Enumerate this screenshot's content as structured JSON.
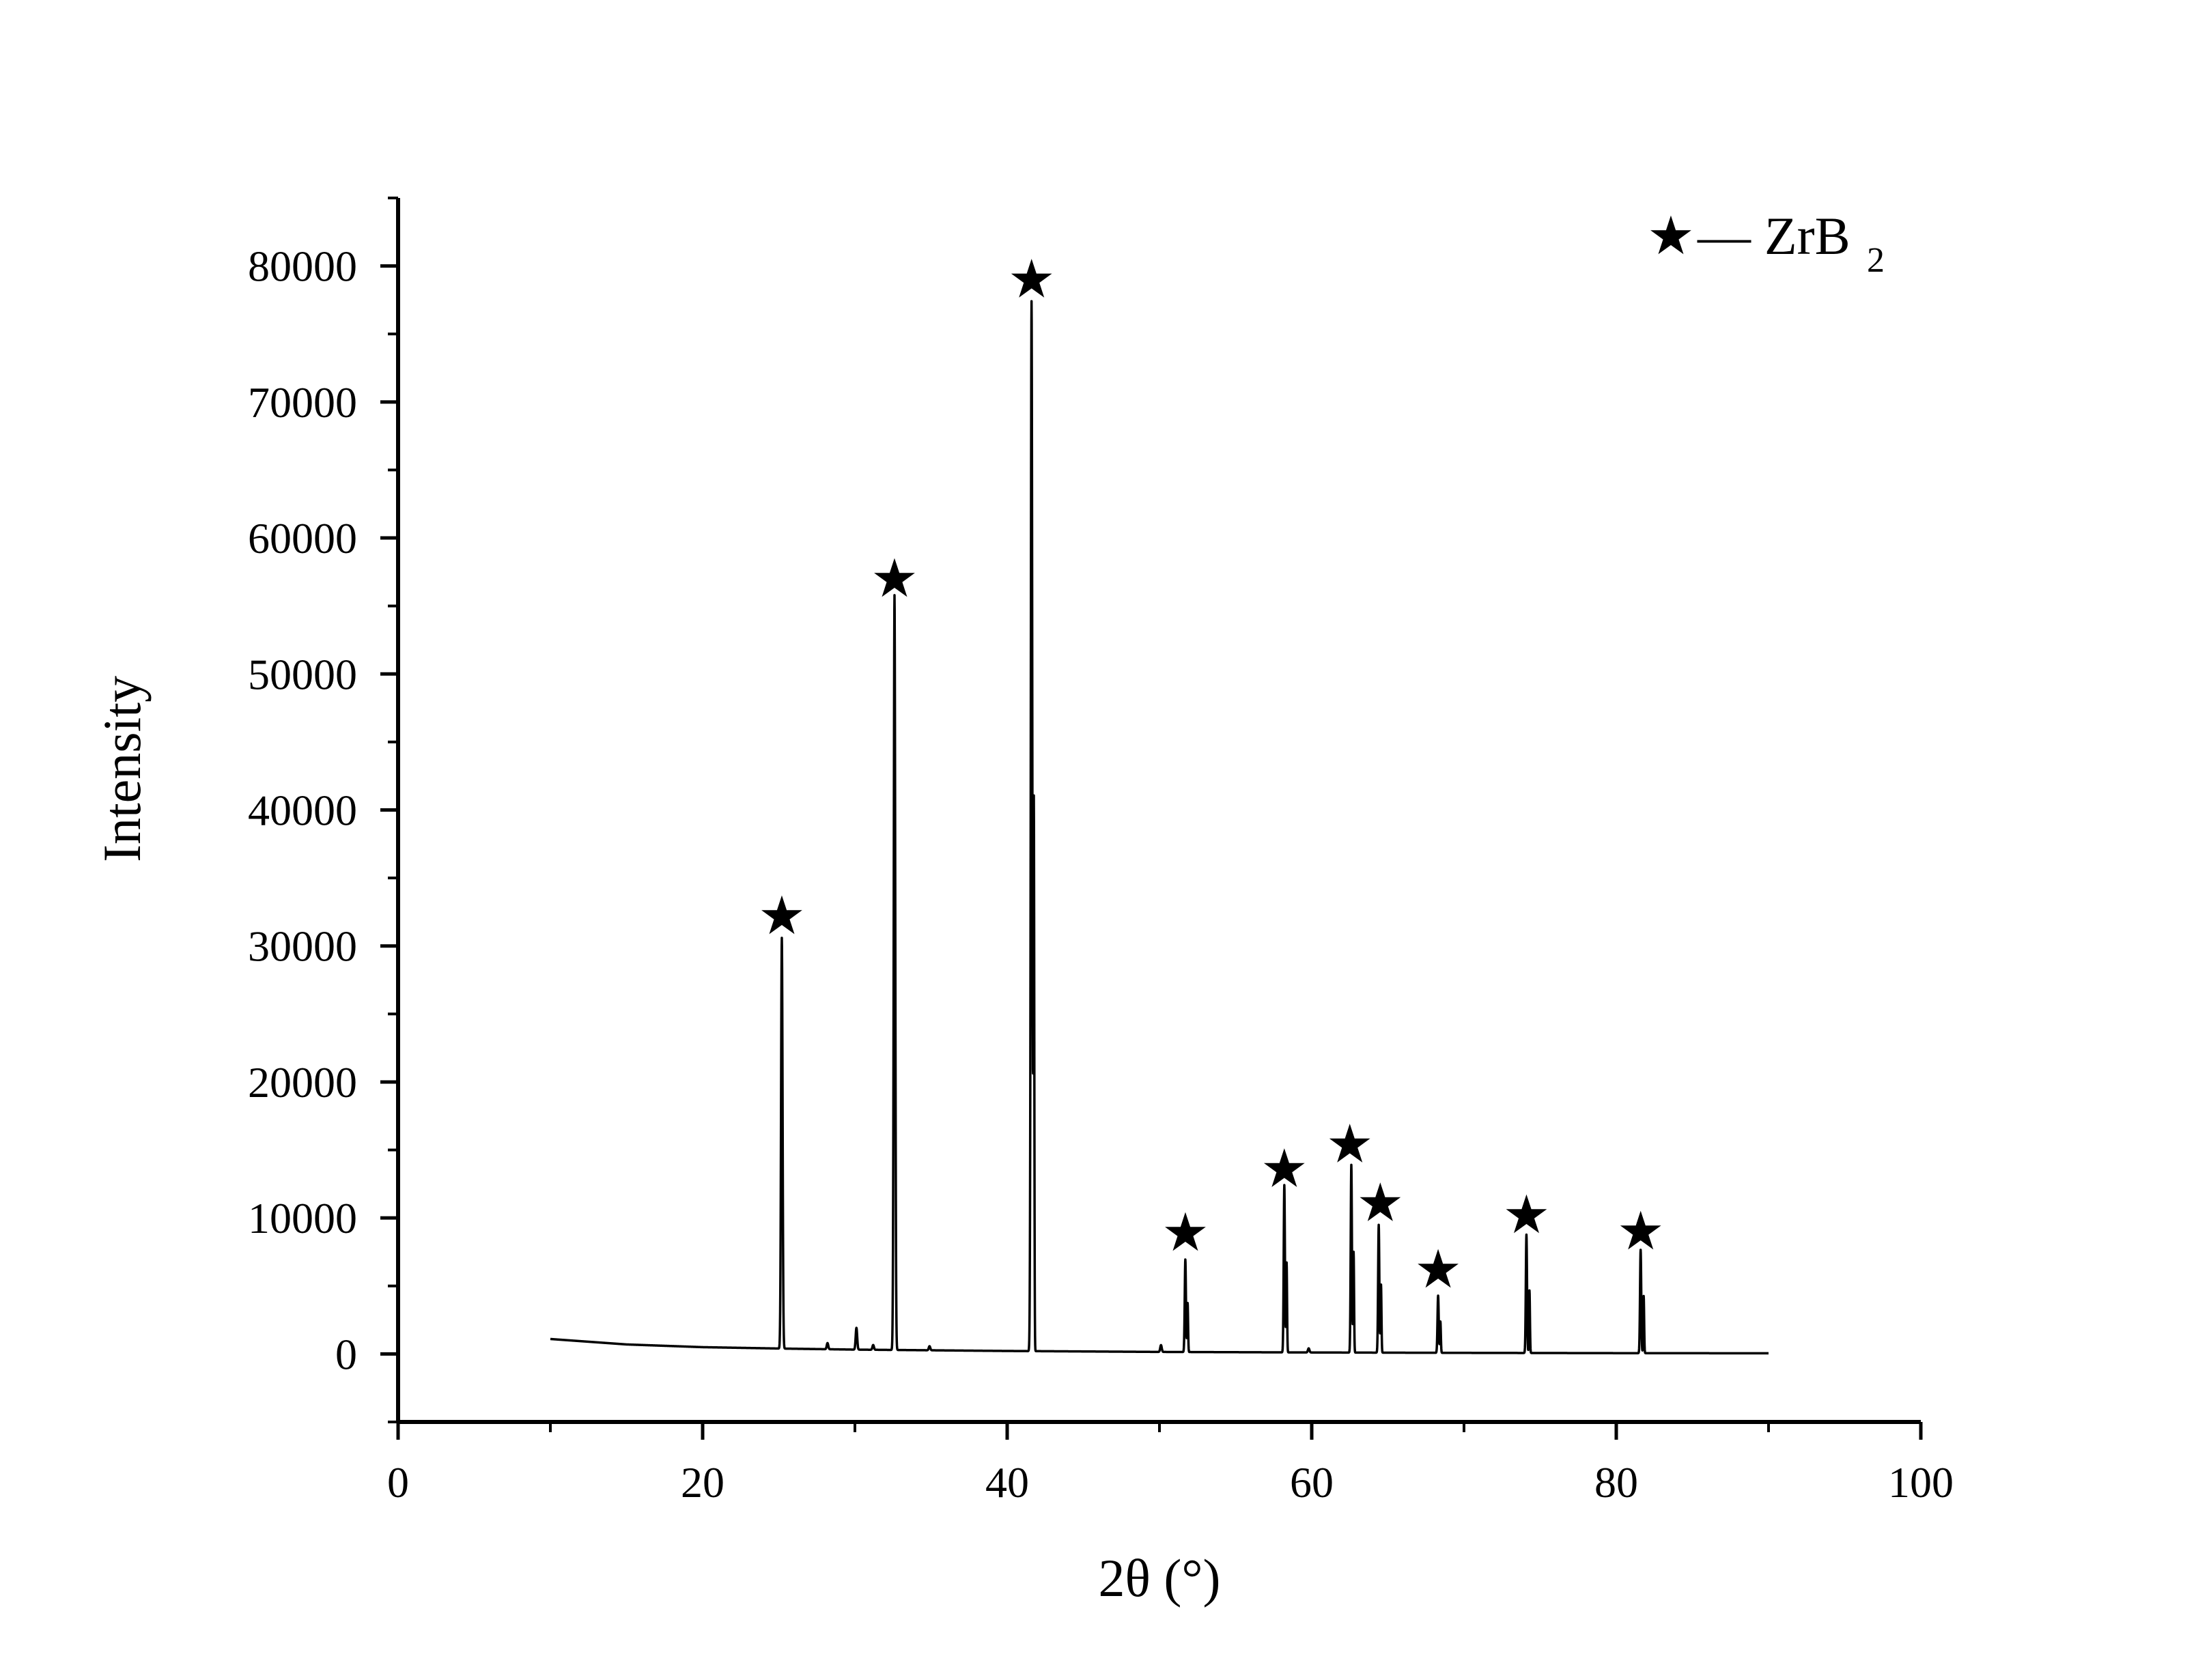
{
  "chart_data": {
    "type": "line",
    "xlabel": "2θ (°)",
    "ylabel": "Intensity",
    "xlim": [
      0,
      100
    ],
    "ylim": [
      -5000,
      85000
    ],
    "x_ticks": [
      0,
      20,
      40,
      60,
      80,
      100
    ],
    "x_tick_labels": [
      "0",
      "20",
      "40",
      "60",
      "80",
      "100"
    ],
    "y_ticks": [
      0,
      10000,
      20000,
      30000,
      40000,
      50000,
      60000,
      70000,
      80000
    ],
    "y_tick_labels": [
      "0",
      "10000",
      "20000",
      "30000",
      "40000",
      "50000",
      "60000",
      "70000",
      "80000"
    ],
    "grid": false,
    "legend": {
      "position": "top-right",
      "marker": "★",
      "dash": "—",
      "label": "ZrB",
      "subscript": "2"
    },
    "series": [
      {
        "name": "ZrB2",
        "color": "#000000",
        "baseline": {
          "x": [
            10,
            15,
            20,
            25,
            30,
            40,
            50,
            60,
            70,
            80,
            90
          ],
          "y": [
            1100,
            700,
            500,
            400,
            320,
            220,
            150,
            110,
            80,
            60,
            50
          ]
        },
        "peaks": [
          {
            "x": 25.2,
            "y": 30200,
            "w": 0.1
          },
          {
            "x": 28.2,
            "y": 450,
            "w": 0.1
          },
          {
            "x": 30.1,
            "y": 1600,
            "w": 0.1
          },
          {
            "x": 31.2,
            "y": 350,
            "w": 0.1
          },
          {
            "x": 32.6,
            "y": 55500,
            "w": 0.1
          },
          {
            "x": 34.9,
            "y": 300,
            "w": 0.1
          },
          {
            "x": 41.6,
            "y": 77200,
            "w": 0.1
          },
          {
            "x": 41.75,
            "y": 40000,
            "w": 0.06
          },
          {
            "x": 50.1,
            "y": 500,
            "w": 0.1
          },
          {
            "x": 51.7,
            "y": 6800,
            "w": 0.08
          },
          {
            "x": 51.85,
            "y": 3600,
            "w": 0.06
          },
          {
            "x": 58.2,
            "y": 12300,
            "w": 0.08
          },
          {
            "x": 58.35,
            "y": 6600,
            "w": 0.06
          },
          {
            "x": 59.8,
            "y": 300,
            "w": 0.1
          },
          {
            "x": 62.6,
            "y": 13800,
            "w": 0.08
          },
          {
            "x": 62.75,
            "y": 7400,
            "w": 0.06
          },
          {
            "x": 64.4,
            "y": 9400,
            "w": 0.08
          },
          {
            "x": 64.55,
            "y": 5000,
            "w": 0.06
          },
          {
            "x": 68.3,
            "y": 4200,
            "w": 0.08
          },
          {
            "x": 68.45,
            "y": 2300,
            "w": 0.06
          },
          {
            "x": 74.1,
            "y": 8700,
            "w": 0.08
          },
          {
            "x": 74.3,
            "y": 4600,
            "w": 0.06
          },
          {
            "x": 81.6,
            "y": 7600,
            "w": 0.08
          },
          {
            "x": 81.8,
            "y": 4200,
            "w": 0.06
          }
        ],
        "x_range": [
          10,
          90
        ]
      }
    ],
    "markers": [
      {
        "symbol": "★",
        "x": 25.2,
        "y": 32200
      },
      {
        "symbol": "★",
        "x": 32.6,
        "y": 57000
      },
      {
        "symbol": "★",
        "x": 41.6,
        "y": 79000
      },
      {
        "symbol": "★",
        "x": 51.7,
        "y": 8900
      },
      {
        "symbol": "★",
        "x": 58.2,
        "y": 13600
      },
      {
        "symbol": "★",
        "x": 62.5,
        "y": 15400
      },
      {
        "symbol": "★",
        "x": 64.5,
        "y": 11100
      },
      {
        "symbol": "★",
        "x": 68.3,
        "y": 6200
      },
      {
        "symbol": "★",
        "x": 74.1,
        "y": 10200
      },
      {
        "symbol": "★",
        "x": 81.6,
        "y": 9000
      }
    ]
  }
}
